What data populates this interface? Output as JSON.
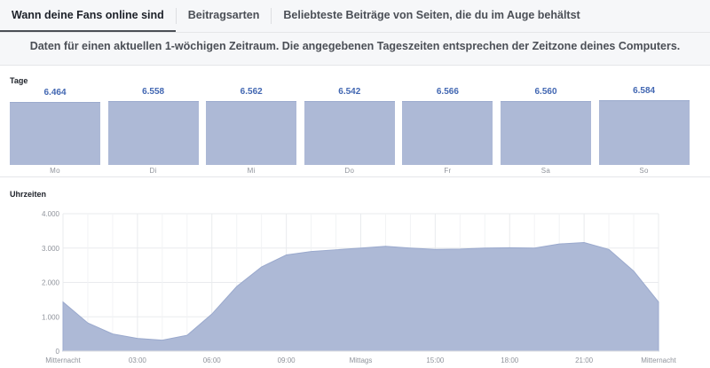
{
  "tabs": [
    {
      "label": "Wann deine Fans online sind",
      "active": true
    },
    {
      "label": "Beitragsarten",
      "active": false
    },
    {
      "label": "Beliebteste Beiträge von Seiten, die du im Auge behältst",
      "active": false
    }
  ],
  "notice": "Daten für einen aktuellen 1-wöchigen Zeitraum. Die angegebenen Tageszeiten entsprechen der Zeitzone deines Computers.",
  "days_section": {
    "label": "Tage"
  },
  "hours_section": {
    "label": "Uhrzeiten"
  },
  "colors": {
    "bar": "#adb9d6",
    "area": "#adb9d6",
    "value": "#4267b2"
  },
  "chart_data": [
    {
      "type": "bar",
      "title": "Tage",
      "categories": [
        "Mo",
        "Di",
        "Mi",
        "Do",
        "Fr",
        "Sa",
        "So"
      ],
      "values": [
        6464,
        6558,
        6562,
        6542,
        6566,
        6560,
        6584
      ],
      "value_labels": [
        "6.464",
        "6.558",
        "6.562",
        "6.542",
        "6.566",
        "6.560",
        "6.584"
      ]
    },
    {
      "type": "area",
      "title": "Uhrzeiten",
      "ylim": [
        0,
        4000
      ],
      "yticks": [
        0,
        1000,
        2000,
        3000,
        4000
      ],
      "ytick_labels": [
        "0",
        "1.000",
        "2.000",
        "3.000",
        "4.000"
      ],
      "x_tick_labels": [
        "Mitternacht",
        "03:00",
        "06:00",
        "09:00",
        "Mittags",
        "15:00",
        "18:00",
        "21:00",
        "Mitternacht"
      ],
      "x": [
        0,
        1,
        2,
        3,
        4,
        5,
        6,
        7,
        8,
        9,
        10,
        11,
        12,
        13,
        14,
        15,
        16,
        17,
        18,
        19,
        20,
        21,
        22,
        23,
        24
      ],
      "values": [
        1430,
        820,
        500,
        370,
        320,
        460,
        1080,
        1880,
        2450,
        2800,
        2900,
        2950,
        3000,
        3050,
        3000,
        2960,
        2970,
        3000,
        3010,
        3000,
        3120,
        3160,
        2960,
        2330,
        1430
      ]
    }
  ]
}
